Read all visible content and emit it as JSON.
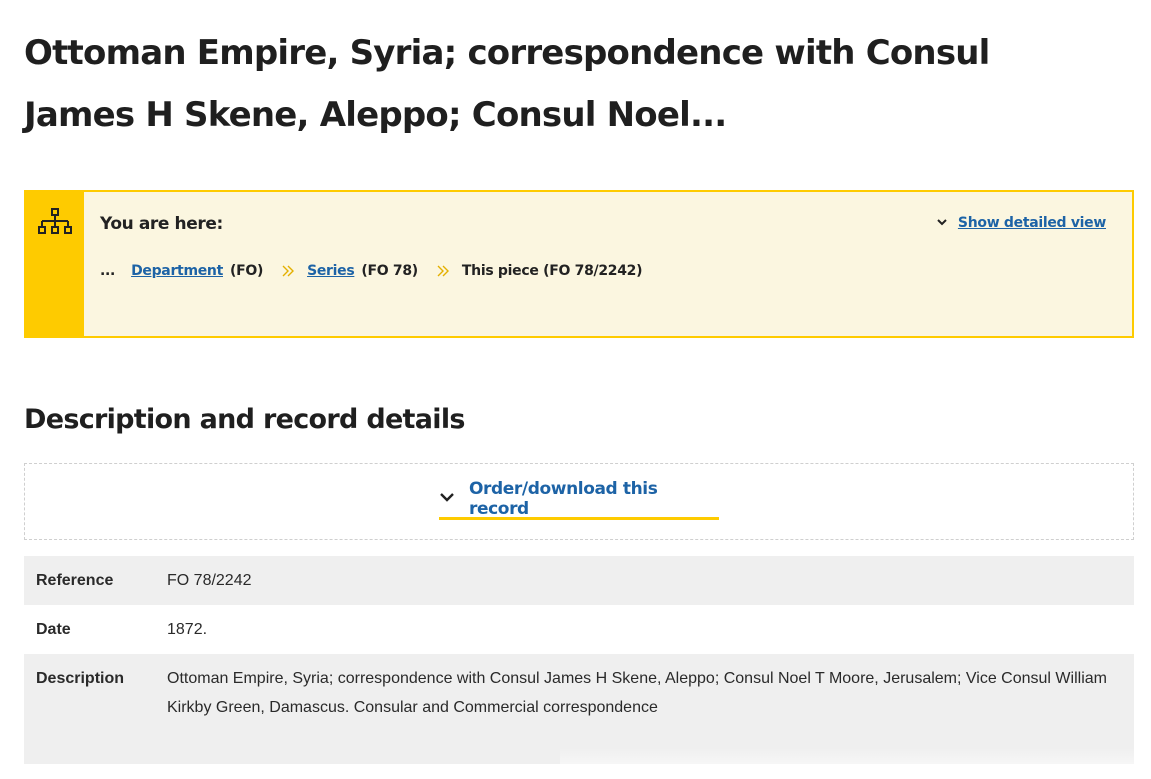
{
  "page": {
    "title": "Ottoman Empire, Syria; correspondence with Consul James H Skene, Aleppo; Consul Noel..."
  },
  "breadcrumb": {
    "heading": "You are here:",
    "show_detailed_view": "Show detailed view",
    "ellipsis": "...",
    "items": [
      {
        "link": "Department",
        "code": "(FO)"
      },
      {
        "link": "Series",
        "code": "(FO 78)"
      },
      {
        "current": "This piece (FO 78/2242)"
      }
    ],
    "icons": {
      "hierarchy": "hierarchy-icon",
      "separator": "double-chevron-right-icon",
      "toggle": "chevron-down-icon"
    }
  },
  "section": {
    "title": "Description and record details",
    "order_button": "Order/download this record"
  },
  "details": [
    {
      "label": "Reference",
      "value": "FO 78/2242"
    },
    {
      "label": "Date",
      "value": "1872."
    },
    {
      "label": "Description",
      "value": "Ottoman Empire, Syria; correspondence with Consul James H Skene, Aleppo; Consul Noel T Moore, Jerusalem; Vice Consul William Kirkby Green, Damascus. Consular and Commercial correspondence"
    }
  ],
  "colors": {
    "accent": "#fecb00",
    "link": "#1d63a6",
    "panel": "#fbf6e0",
    "row_shade": "#efefef"
  }
}
